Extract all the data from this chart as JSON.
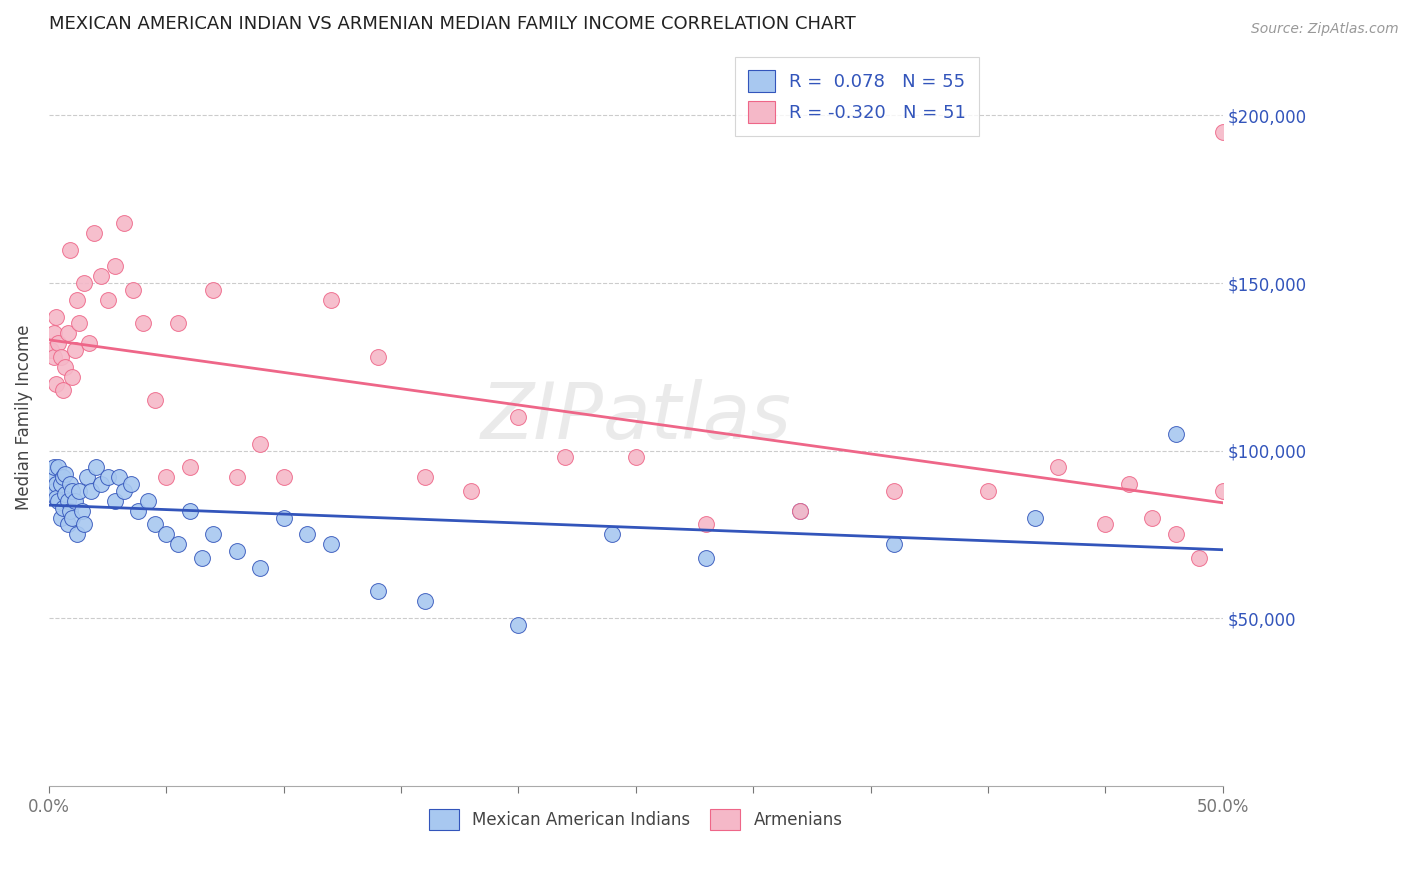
{
  "title": "MEXICAN AMERICAN INDIAN VS ARMENIAN MEDIAN FAMILY INCOME CORRELATION CHART",
  "source": "Source: ZipAtlas.com",
  "ylabel": "Median Family Income",
  "ytick_labels": [
    "$50,000",
    "$100,000",
    "$150,000",
    "$200,000"
  ],
  "ytick_values": [
    50000,
    100000,
    150000,
    200000
  ],
  "ylim": [
    0,
    220000
  ],
  "xlim": [
    0,
    0.5
  ],
  "legend_r_blue": "R =  0.078",
  "legend_n_blue": "N = 55",
  "legend_r_pink": "R = -0.320",
  "legend_n_pink": "N = 51",
  "color_blue": "#A8C8F0",
  "color_pink": "#F5B8C8",
  "line_color_blue": "#3355BB",
  "line_color_pink": "#EE6688",
  "watermark": "ZIPatlas",
  "blue_scatter_x": [
    0.001,
    0.002,
    0.002,
    0.003,
    0.003,
    0.004,
    0.004,
    0.005,
    0.005,
    0.006,
    0.006,
    0.007,
    0.007,
    0.008,
    0.008,
    0.009,
    0.009,
    0.01,
    0.01,
    0.011,
    0.012,
    0.013,
    0.014,
    0.015,
    0.016,
    0.018,
    0.02,
    0.022,
    0.025,
    0.028,
    0.03,
    0.032,
    0.035,
    0.038,
    0.042,
    0.045,
    0.05,
    0.055,
    0.06,
    0.065,
    0.07,
    0.08,
    0.09,
    0.1,
    0.11,
    0.12,
    0.14,
    0.16,
    0.2,
    0.24,
    0.28,
    0.32,
    0.36,
    0.42,
    0.48
  ],
  "blue_scatter_y": [
    92000,
    88000,
    95000,
    90000,
    86000,
    85000,
    95000,
    80000,
    90000,
    83000,
    92000,
    87000,
    93000,
    78000,
    85000,
    82000,
    90000,
    80000,
    88000,
    85000,
    75000,
    88000,
    82000,
    78000,
    92000,
    88000,
    95000,
    90000,
    92000,
    85000,
    92000,
    88000,
    90000,
    82000,
    85000,
    78000,
    75000,
    72000,
    82000,
    68000,
    75000,
    70000,
    65000,
    80000,
    75000,
    72000,
    58000,
    55000,
    48000,
    75000,
    68000,
    82000,
    72000,
    80000,
    105000
  ],
  "pink_scatter_x": [
    0.001,
    0.002,
    0.002,
    0.003,
    0.003,
    0.004,
    0.005,
    0.006,
    0.007,
    0.008,
    0.009,
    0.01,
    0.011,
    0.012,
    0.013,
    0.015,
    0.017,
    0.019,
    0.022,
    0.025,
    0.028,
    0.032,
    0.036,
    0.04,
    0.045,
    0.05,
    0.055,
    0.06,
    0.07,
    0.08,
    0.09,
    0.1,
    0.12,
    0.14,
    0.16,
    0.18,
    0.2,
    0.22,
    0.25,
    0.28,
    0.32,
    0.36,
    0.4,
    0.43,
    0.45,
    0.46,
    0.47,
    0.48,
    0.49,
    0.5,
    0.5
  ],
  "pink_scatter_y": [
    130000,
    128000,
    135000,
    120000,
    140000,
    132000,
    128000,
    118000,
    125000,
    135000,
    160000,
    122000,
    130000,
    145000,
    138000,
    150000,
    132000,
    165000,
    152000,
    145000,
    155000,
    168000,
    148000,
    138000,
    115000,
    92000,
    138000,
    95000,
    148000,
    92000,
    102000,
    92000,
    145000,
    128000,
    92000,
    88000,
    110000,
    98000,
    98000,
    78000,
    82000,
    88000,
    88000,
    95000,
    78000,
    90000,
    80000,
    75000,
    68000,
    88000,
    195000
  ]
}
